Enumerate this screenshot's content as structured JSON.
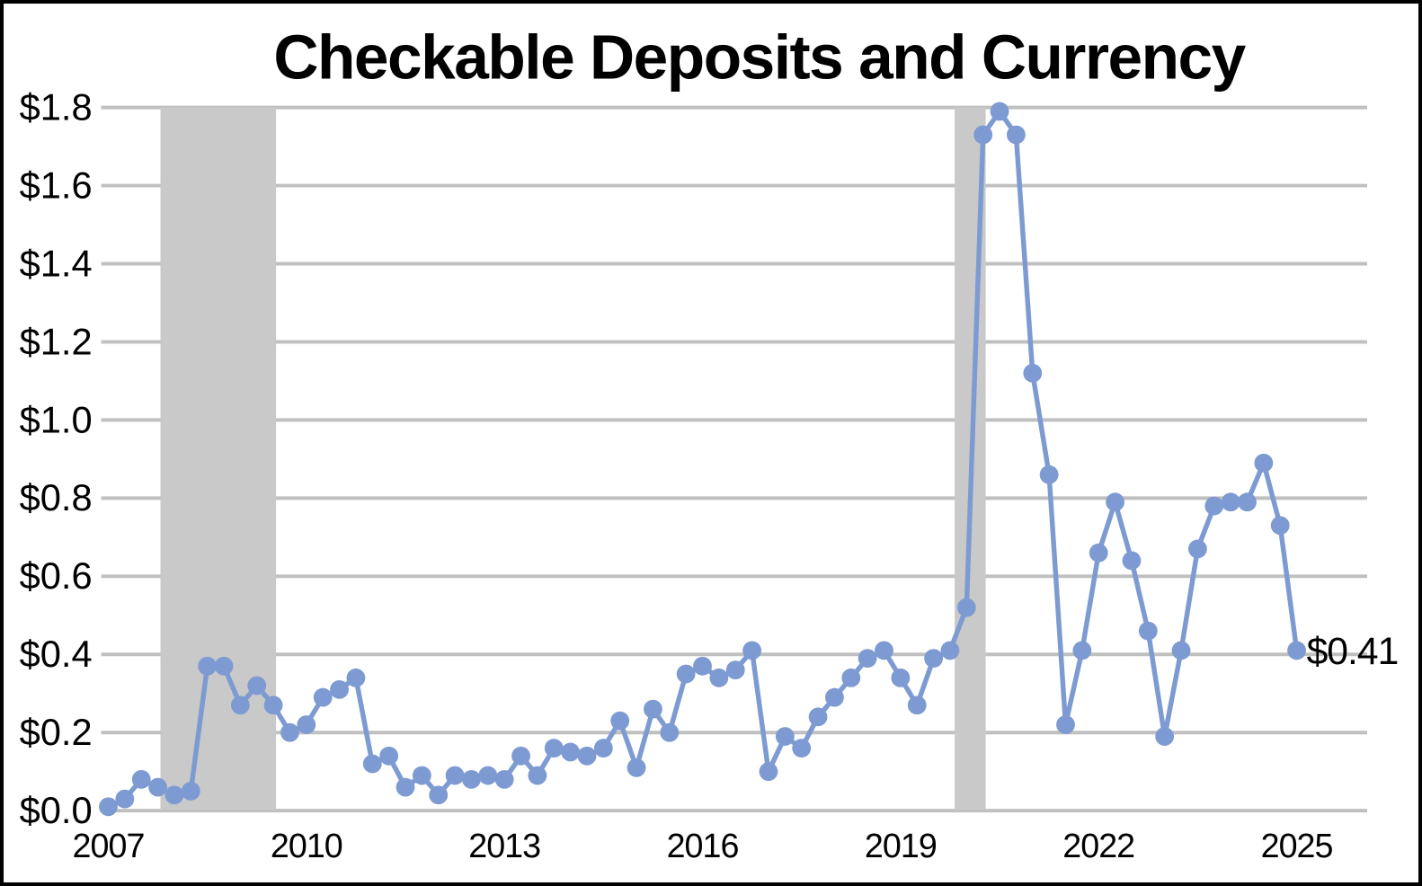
{
  "chart_data": {
    "type": "line",
    "title": "Checkable Deposits and Currency",
    "frequency": "quarterly",
    "categories": [
      "2007Q1",
      "2007Q2",
      "2007Q3",
      "2007Q4",
      "2008Q1",
      "2008Q2",
      "2008Q3",
      "2008Q4",
      "2009Q1",
      "2009Q2",
      "2009Q3",
      "2009Q4",
      "2010Q1",
      "2010Q2",
      "2010Q3",
      "2010Q4",
      "2011Q1",
      "2011Q2",
      "2011Q3",
      "2011Q4",
      "2012Q1",
      "2012Q2",
      "2012Q3",
      "2012Q4",
      "2013Q1",
      "2013Q2",
      "2013Q3",
      "2013Q4",
      "2014Q1",
      "2014Q2",
      "2014Q3",
      "2014Q4",
      "2015Q1",
      "2015Q2",
      "2015Q3",
      "2015Q4",
      "2016Q1",
      "2016Q2",
      "2016Q3",
      "2016Q4",
      "2017Q1",
      "2017Q2",
      "2017Q3",
      "2017Q4",
      "2018Q1",
      "2018Q2",
      "2018Q3",
      "2018Q4",
      "2019Q1",
      "2019Q2",
      "2019Q3",
      "2019Q4",
      "2020Q1",
      "2020Q2",
      "2020Q3",
      "2020Q4",
      "2021Q1",
      "2021Q2",
      "2021Q3",
      "2021Q4",
      "2022Q1",
      "2022Q2",
      "2022Q3",
      "2022Q4",
      "2023Q1",
      "2023Q2",
      "2023Q3",
      "2023Q4",
      "2024Q1",
      "2024Q2",
      "2024Q3",
      "2024Q4",
      "2025Q1"
    ],
    "values": [
      0.01,
      0.03,
      0.08,
      0.06,
      0.04,
      0.05,
      0.37,
      0.37,
      0.27,
      0.32,
      0.27,
      0.2,
      0.22,
      0.29,
      0.31,
      0.34,
      0.12,
      0.14,
      0.06,
      0.09,
      0.04,
      0.09,
      0.08,
      0.09,
      0.08,
      0.14,
      0.09,
      0.16,
      0.15,
      0.14,
      0.16,
      0.23,
      0.11,
      0.26,
      0.2,
      0.35,
      0.37,
      0.34,
      0.36,
      0.41,
      0.1,
      0.19,
      0.16,
      0.24,
      0.29,
      0.34,
      0.39,
      0.41,
      0.34,
      0.27,
      0.39,
      0.41,
      0.52,
      1.73,
      1.79,
      1.73,
      1.12,
      0.86,
      0.22,
      0.41,
      0.66,
      0.79,
      0.64,
      0.46,
      0.19,
      0.41,
      0.67,
      0.78,
      0.79,
      0.79,
      0.89,
      0.73,
      0.41
    ],
    "x_ticks": [
      "2007",
      "2010",
      "2013",
      "2016",
      "2019",
      "2022",
      "2025"
    ],
    "y_ticks": [
      "$0.0",
      "$0.2",
      "$0.4",
      "$0.6",
      "$0.8",
      "$1.0",
      "$1.2",
      "$1.4",
      "$1.6",
      "$1.8"
    ],
    "y_tick_values": [
      0.0,
      0.2,
      0.4,
      0.6,
      0.8,
      1.0,
      1.2,
      1.4,
      1.6,
      1.8
    ],
    "ylim": [
      0.0,
      1.8
    ],
    "xlim_years": [
      2006.89,
      2026.05
    ],
    "grid": true,
    "legend": "none",
    "end_label": "$0.41",
    "recession_bands": [
      {
        "from": 2007.79,
        "to": 2009.54
      },
      {
        "from": 2019.82,
        "to": 2020.29
      }
    ],
    "colors": {
      "line": "#7D9BD2",
      "marker": "#7D9BD2",
      "band": "#C9C9C9",
      "gridline": "#C0C0C0",
      "title": "#000000",
      "axis_text": "#000000",
      "end_label": "#7D9BD2",
      "background": "#FFFFFF",
      "border": "#000000"
    }
  }
}
